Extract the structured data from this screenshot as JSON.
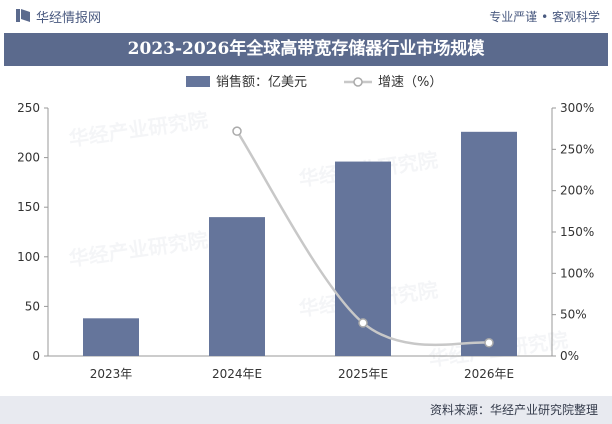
{
  "header": {
    "brand": "华经情报网",
    "slogan": "专业严谨 • 客观科学"
  },
  "footer": {
    "source": "资料来源：华经产业研究院整理"
  },
  "watermark": "华经产业研究院",
  "colors": {
    "bar": "#65759b",
    "line": "#c8c8c8",
    "title_band": "#5b6a8d",
    "footer_band": "#e8eaf0"
  },
  "chart_data": {
    "type": "bar",
    "title": "2023-2026年全球高带宽存储器行业市场规模",
    "categories": [
      "2023年",
      "2024年E",
      "2025年E",
      "2026年E"
    ],
    "series": [
      {
        "name": "销售额：亿美元",
        "type": "bar",
        "axis": "left",
        "values": [
          38,
          140,
          196,
          226
        ]
      },
      {
        "name": "增速（%）",
        "type": "line",
        "axis": "right",
        "values": [
          null,
          272,
          40,
          16
        ]
      }
    ],
    "y_left": {
      "min": 0,
      "max": 250,
      "ticks": [
        "0",
        "50",
        "100",
        "150",
        "200",
        "250"
      ]
    },
    "y_right": {
      "min": 0,
      "max": 300,
      "ticks": [
        "0%",
        "50%",
        "100%",
        "150%",
        "200%",
        "250%",
        "300%"
      ]
    },
    "legend_position": "top-center",
    "grid": false
  }
}
